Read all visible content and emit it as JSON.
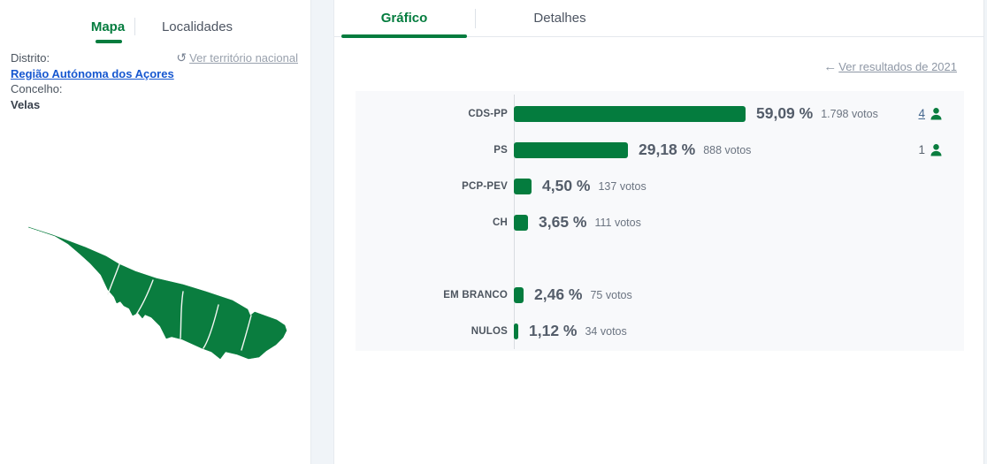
{
  "colors": {
    "accent_green": "#047c3e",
    "map_green": "#0a7d3f",
    "chart_bg": "#f8f9fb",
    "link_blue": "#1657d0",
    "mandate_link_blue": "#46688f",
    "muted_gray": "#8e97a5"
  },
  "left_panel": {
    "tabs": [
      {
        "label": "Mapa",
        "active": true
      },
      {
        "label": "Localidades",
        "active": false
      }
    ],
    "reset_link_label": "Ver território nacional",
    "reset_link_icon": "undo-icon",
    "district_label": "Distrito:",
    "district_value": "Região Autónoma dos Açores",
    "municipality_label": "Concelho:",
    "municipality_value": "Velas"
  },
  "right_panel": {
    "tabs": [
      {
        "label": "Gráfico",
        "active": true
      },
      {
        "label": "Detalhes",
        "active": false
      }
    ],
    "back_link_label": "Ver resultados de 2021",
    "back_link_icon": "left-arrow-icon"
  },
  "chart_data": {
    "type": "bar",
    "orientation": "horizontal",
    "bar_color": "#047c3e",
    "xlim": [
      0,
      100
    ],
    "grid": false,
    "legend": false,
    "categories": [
      "CDS-PP",
      "PS",
      "PCP-PEV",
      "CH",
      "EM BRANCO",
      "NULOS"
    ],
    "values_percent": [
      59.09,
      29.18,
      4.5,
      3.65,
      2.46,
      1.12
    ],
    "values_votes": [
      1798,
      888,
      137,
      111,
      75,
      34
    ],
    "rows": [
      {
        "party": "CDS-PP",
        "percent": 59.09,
        "percent_label": "59,09 %",
        "votes_label": "1.798 votos",
        "mandates": 4,
        "mandates_link": true
      },
      {
        "party": "PS",
        "percent": 29.18,
        "percent_label": "29,18 %",
        "votes_label": "888 votos",
        "mandates": 1,
        "mandates_link": false
      },
      {
        "party": "PCP-PEV",
        "percent": 4.5,
        "percent_label": "4,50 %",
        "votes_label": "137 votos"
      },
      {
        "party": "CH",
        "percent": 3.65,
        "percent_label": "3,65 %",
        "votes_label": "111 votos"
      },
      {
        "party": "EM BRANCO",
        "percent": 2.46,
        "percent_label": "2,46 %",
        "votes_label": "75 votos",
        "spacer_before": true
      },
      {
        "party": "NULOS",
        "percent": 1.12,
        "percent_label": "1,12 %",
        "votes_label": "34 votos"
      }
    ]
  }
}
